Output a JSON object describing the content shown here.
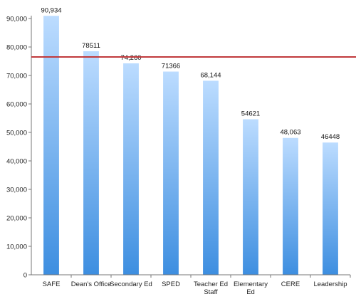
{
  "chart_data": {
    "type": "bar",
    "categories": [
      "SAFE",
      "Dean's Office",
      "Secondary Ed",
      "SPED",
      "Teacher Ed Staff",
      "Elementary Ed",
      "CERE",
      "Leadership"
    ],
    "category_lines": [
      [
        "SAFE"
      ],
      [
        "Dean's Office"
      ],
      [
        "Secondary Ed"
      ],
      [
        "SPED"
      ],
      [
        "Teacher Ed",
        "Staff"
      ],
      [
        "Elementary",
        "Ed"
      ],
      [
        "CERE"
      ],
      [
        "Leadership"
      ]
    ],
    "values": [
      90934,
      78511,
      74260,
      71366,
      68144,
      54621,
      48063,
      46448
    ],
    "data_labels": [
      "90,934",
      "78511",
      "74,260",
      "71366",
      "68,144",
      "54621",
      "48,063",
      "46448"
    ],
    "ylim": [
      0,
      90000
    ],
    "yticks": [
      0,
      10000,
      20000,
      30000,
      40000,
      50000,
      60000,
      70000,
      80000,
      90000
    ],
    "ytick_labels": [
      "0",
      "10,000",
      "20,000",
      "30,000",
      "40,000",
      "50,000",
      "60,000",
      "70,000",
      "80,000",
      "90,000"
    ],
    "reference_line": {
      "value": 76500,
      "color": "#c0393b"
    },
    "grid": false,
    "legend": "none",
    "bar_color_top": "#bcdcff",
    "bar_color_bottom": "#3d8ee0",
    "title": "",
    "xlabel": "",
    "ylabel": ""
  }
}
